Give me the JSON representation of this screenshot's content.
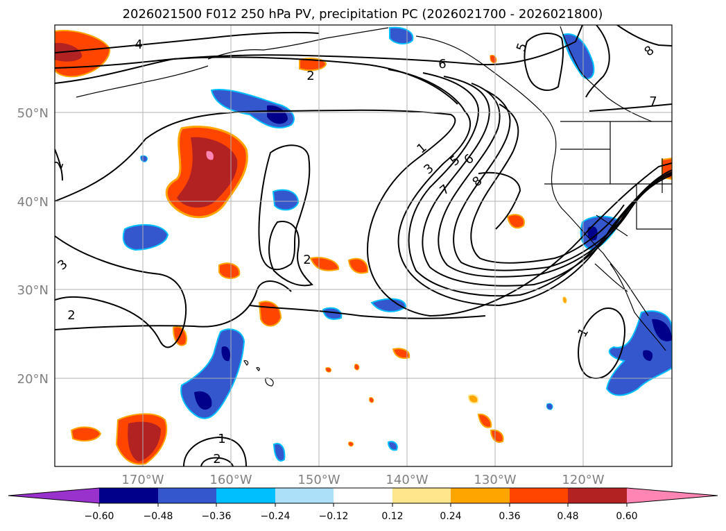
{
  "title": "2026021500 F012 250 hPa PV, precipitation PC (2026021700 - 2026021800)",
  "map": {
    "lon_labels": [
      "170°W",
      "160°W",
      "150°W",
      "140°W",
      "130°W",
      "120°W"
    ],
    "lat_labels": [
      "50°N",
      "40°N",
      "30°N",
      "20°N"
    ],
    "pv_contour_labels": [
      "4",
      "5",
      "6",
      "7",
      "8",
      "2",
      "2",
      "3",
      "2",
      "1",
      "3",
      "5",
      "6",
      "7",
      "8",
      "2",
      "1",
      "1",
      "2"
    ]
  },
  "colorbar": {
    "ticks": [
      "−0.60",
      "−0.48",
      "−0.36",
      "−0.24",
      "−0.12",
      "0.12",
      "0.24",
      "0.36",
      "0.48",
      "0.60"
    ],
    "colors": [
      "#9932cc",
      "#00008b",
      "#3457cd",
      "#00bfff",
      "#acdff8",
      "#ffffff",
      "#ffe68c",
      "#ffa500",
      "#ff4500",
      "#b22222",
      "#ff86b4"
    ]
  },
  "colors": {
    "neg_strong": "#00008b",
    "neg_mid": "#3457cd",
    "neg_light": "#00bfff",
    "pos_light": "#ffe68c",
    "pos_mid": "#ffa500",
    "pos_strong": "#ff4500",
    "pos_vstrong": "#b22222",
    "pos_max": "#ff86b4"
  }
}
